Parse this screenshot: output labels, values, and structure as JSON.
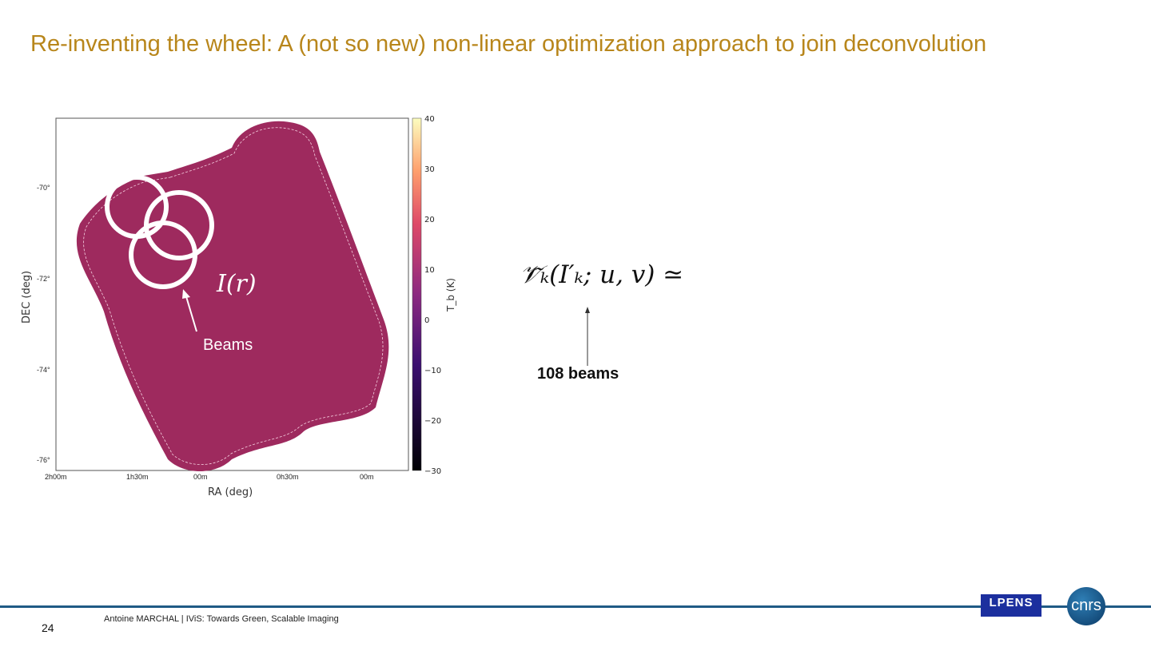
{
  "slide": {
    "title": "Re-inventing the wheel: A (not so new) non-linear optimization approach to join deconvolution",
    "page_number": "24",
    "footer": "Antoine MARCHAL  | IViS: Towards Green, Scalable Imaging"
  },
  "figure": {
    "xlabel": "RA (deg)",
    "ylabel": "DEC (deg)",
    "colorbar_label": "T_b (K)",
    "x_ticks": [
      "2h00m",
      "1h30m",
      "00m",
      "0h30m",
      "00m"
    ],
    "y_ticks": [
      "-70°",
      "-72°",
      "-74°",
      "-76°"
    ],
    "colorbar_ticks": [
      "40",
      "30",
      "20",
      "10",
      "0",
      "−10",
      "−20",
      "−30"
    ],
    "colorbar_range": [
      -30,
      40
    ],
    "map_color": "#9e2a5e",
    "image_label": "I(r)",
    "beams_label": "Beams"
  },
  "formula": {
    "text": "𝒱̃ₖ(I′ₖ; u, v) ≃",
    "annotation": "108 beams"
  },
  "logos": {
    "lpens": "LPENS",
    "cnrs": "cnrs"
  },
  "colors": {
    "title": "#b8861b",
    "footer_line": "#1f5a85"
  }
}
